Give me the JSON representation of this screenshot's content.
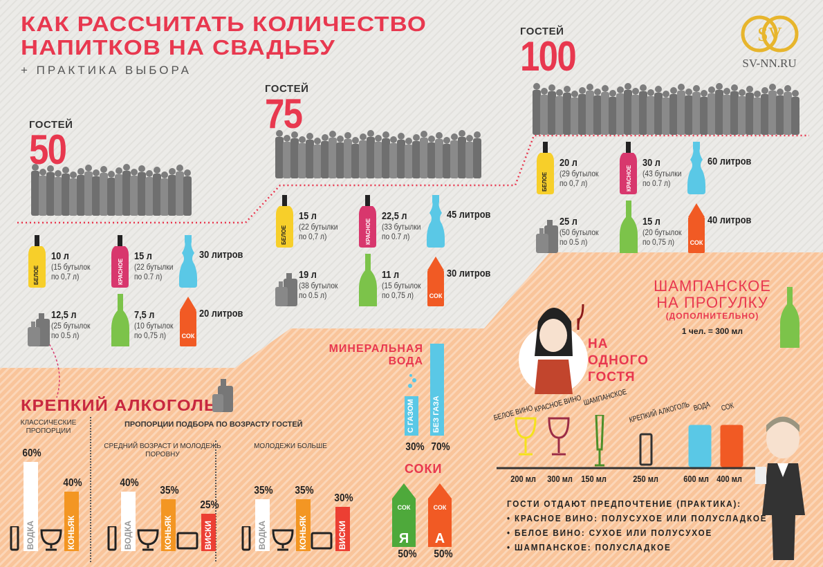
{
  "header": {
    "title_line1": "КАК РАССЧИТАТЬ КОЛИЧЕСТВО",
    "title_line2": "НАПИТКОВ НА СВАДЬБУ",
    "subtitle": "+ ПРАКТИКА ВЫБОРА"
  },
  "logo": {
    "monogram": "SV",
    "site": "SV-NN.RU"
  },
  "colors": {
    "accent": "#e8384f",
    "white_wine": "#f7cf2a",
    "red_wine": "#d8376d",
    "water": "#5ac8e6",
    "juice": "#f15a24",
    "champagne": "#7cc34a",
    "strong": "#777777",
    "orange_bg": "#f9c49a",
    "gold": "#e7b52c"
  },
  "scenarios": [
    {
      "label": "ГОСТЕЙ",
      "count": "50",
      "drinks": [
        {
          "icon": "white-wine-bottle-icon",
          "tag": "БЕЛОЕ",
          "amount": "10 л",
          "note": [
            "(15 бутылок",
            "по 0,7 л)"
          ]
        },
        {
          "icon": "red-wine-bottle-icon",
          "tag": "КРАСНОЕ",
          "amount": "15 л",
          "note": [
            "(22 бутылки",
            "по 0.7 л)"
          ]
        },
        {
          "icon": "water-bottle-icon",
          "tag": "",
          "amount": "30 литров",
          "note": []
        },
        {
          "icon": "strong-alcohol-bottles-icon",
          "tag": "",
          "amount": "12,5 л",
          "note": [
            "(25 бутылок",
            "по 0.5 л)"
          ]
        },
        {
          "icon": "champagne-bottle-icon",
          "tag": "",
          "amount": "7,5 л",
          "note": [
            "(10 бутылок",
            "по 0,75 л)"
          ]
        },
        {
          "icon": "juice-box-icon",
          "tag": "СОК",
          "amount": "20 литров",
          "note": []
        }
      ]
    },
    {
      "label": "ГОСТЕЙ",
      "count": "75",
      "drinks": [
        {
          "icon": "white-wine-bottle-icon",
          "tag": "БЕЛОЕ",
          "amount": "15 л",
          "note": [
            "(22 бутылки",
            "по 0,7 л)"
          ]
        },
        {
          "icon": "red-wine-bottle-icon",
          "tag": "КРАСНОЕ",
          "amount": "22,5 л",
          "note": [
            "(33 бутылки",
            "по 0.7 л)"
          ]
        },
        {
          "icon": "water-bottle-icon",
          "tag": "",
          "amount": "45 литров",
          "note": []
        },
        {
          "icon": "strong-alcohol-bottles-icon",
          "tag": "",
          "amount": "19 л",
          "note": [
            "(38 бутылок",
            "по 0.5 л)"
          ]
        },
        {
          "icon": "champagne-bottle-icon",
          "tag": "",
          "amount": "11 л",
          "note": [
            "(15 бутылок",
            "по 0,75 л)"
          ]
        },
        {
          "icon": "juice-box-icon",
          "tag": "СОК",
          "amount": "30 литров",
          "note": []
        }
      ]
    },
    {
      "label": "ГОСТЕЙ",
      "count": "100",
      "drinks": [
        {
          "icon": "white-wine-bottle-icon",
          "tag": "БЕЛОЕ",
          "amount": "20 л",
          "note": [
            "(29 бутылок",
            "по 0,7 л)"
          ]
        },
        {
          "icon": "red-wine-bottle-icon",
          "tag": "КРАСНОЕ",
          "amount": "30 л",
          "note": [
            "(43 бутылки",
            "по 0.7 л)"
          ]
        },
        {
          "icon": "water-bottle-icon",
          "tag": "",
          "amount": "60 литров",
          "note": []
        },
        {
          "icon": "strong-alcohol-bottles-icon",
          "tag": "",
          "amount": "25 л",
          "note": [
            "(50 бутылок",
            "по 0.5 л)"
          ]
        },
        {
          "icon": "champagne-bottle-icon",
          "tag": "",
          "amount": "15 л",
          "note": [
            "(20 бутылок",
            "по 0,75 л)"
          ]
        },
        {
          "icon": "juice-box-icon",
          "tag": "СОК",
          "amount": "40 литров",
          "note": []
        }
      ]
    }
  ],
  "strong": {
    "title": "КРЕПКИЙ АЛКОГОЛЬ",
    "classic_title": "КЛАССИЧЕСКИЕ ПРОПОРЦИИ",
    "age_title": "ПРОПОРЦИИ ПОДБОРА ПО ВОЗРАСТУ ГОСТЕЙ",
    "chart_data": [
      {
        "type": "bar",
        "title": "КЛАССИЧЕСКИЕ ПРОПОРЦИИ",
        "categories": [
          "ВОДКА",
          "КОНЬЯК"
        ],
        "values": [
          60,
          40
        ],
        "labels": [
          "60%",
          "40%"
        ]
      },
      {
        "type": "bar",
        "title": "СРЕДНИЙ ВОЗРАСТ И МОЛОДЕЖЬ ПОРОВНУ",
        "categories": [
          "ВОДКА",
          "КОНЬЯК",
          "ВИСКИ"
        ],
        "values": [
          40,
          35,
          25
        ],
        "labels": [
          "40%",
          "35%",
          "25%"
        ]
      },
      {
        "type": "bar",
        "title": "МОЛОДЕЖИ БОЛЬШЕ",
        "categories": [
          "ВОДКА",
          "КОНЬЯК",
          "ВИСКИ"
        ],
        "values": [
          35,
          35,
          30
        ],
        "labels": [
          "35%",
          "35%",
          "30%"
        ]
      }
    ]
  },
  "water": {
    "title_line1": "МИНЕРАЛЬНАЯ",
    "title_line2": "ВОДА",
    "chart_data": {
      "type": "bar",
      "categories": [
        "С ГАЗОМ",
        "БЕЗ ГАЗА"
      ],
      "values": [
        30,
        70
      ],
      "labels": [
        "30%",
        "70%"
      ]
    }
  },
  "juice": {
    "title": "СОКИ",
    "boxes": [
      {
        "tag": "СОК",
        "letter": "Я",
        "pct": "50%"
      },
      {
        "tag": "СОК",
        "letter": "А",
        "pct": "50%"
      }
    ]
  },
  "per_guest": {
    "title_line1": "НА",
    "title_line2": "ОДНОГО",
    "title_line3": "ГОСТЯ",
    "glasses": [
      {
        "name": "БЕЛОЕ ВИНО",
        "vol": "200 мл"
      },
      {
        "name": "КРАСНОЕ ВИНО",
        "vol": "300 мл"
      },
      {
        "name": "ШАМПАНСКОЕ",
        "vol": "150 мл"
      },
      {
        "name": "КРЕПКИЙ АЛКОГОЛЬ",
        "vol": "250 мл"
      },
      {
        "name": "ВОДА",
        "vol": "600 мл"
      },
      {
        "name": "СОК",
        "vol": "400 мл"
      }
    ]
  },
  "walk": {
    "line1": "ШАМПАНСКОЕ",
    "line2": "НА ПРОГУЛКУ",
    "line3": "(ДОПОЛНИТЕЛЬНО)",
    "rate": "1 чел. = 300 мл"
  },
  "preferences": {
    "title": "ГОСТИ ОТДАЮТ ПРЕДПОЧТЕНИЕ (ПРАКТИКА):",
    "items": [
      "•  КРАСНОЕ ВИНО: ПОЛУСУХОЕ ИЛИ ПОЛУСЛАДКОЕ",
      "•  БЕЛОЕ ВИНО: СУХОЕ ИЛИ ПОЛУСУХОЕ",
      "•  ШАМПАНСКОЕ: ПОЛУСЛАДКОЕ"
    ]
  }
}
